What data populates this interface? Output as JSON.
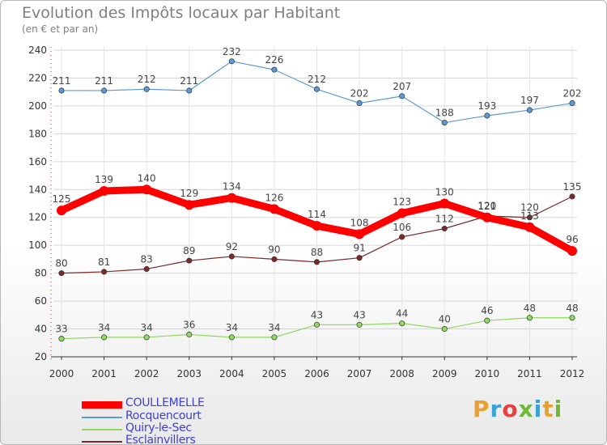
{
  "title": "Evolution des Impôts locaux par Habitant",
  "subtitle": "(en € et par an)",
  "logo_text": "Proxiti",
  "logo_colors": [
    "#e8a030",
    "#3aa0d8",
    "#e84040",
    "#70b83a",
    "#3aa0d8",
    "#e8a030",
    "#70b83a"
  ],
  "chart_data": {
    "type": "line",
    "title": "Evolution des Impôts locaux par Habitant",
    "subtitle": "(en € et par an)",
    "x": [
      "2000",
      "2001",
      "2002",
      "2003",
      "2004",
      "2005",
      "2006",
      "2007",
      "2008",
      "2009",
      "2010",
      "2011",
      "2012"
    ],
    "ylim": [
      20,
      240
    ],
    "yticks": [
      20,
      40,
      60,
      80,
      100,
      120,
      140,
      160,
      180,
      200,
      220,
      240
    ],
    "grid": true,
    "legend_position": "bottom-left",
    "series": [
      {
        "name": "Rocquencourt",
        "color": "#5b9bd5",
        "values": [
          211,
          211,
          212,
          211,
          232,
          226,
          212,
          202,
          207,
          188,
          193,
          197,
          202
        ]
      },
      {
        "name": "Quiry-le-Sec",
        "color": "#90d860",
        "values": [
          33,
          34,
          34,
          36,
          34,
          34,
          43,
          43,
          44,
          40,
          46,
          48,
          48
        ]
      },
      {
        "name": "Esclainvillers",
        "color": "#7a2a2a",
        "values": [
          80,
          81,
          83,
          89,
          92,
          90,
          88,
          91,
          106,
          112,
          121,
          120,
          135
        ]
      },
      {
        "name": "COULLEMELLE",
        "color": "#ff0000",
        "values": [
          125,
          139,
          140,
          129,
          134,
          126,
          114,
          108,
          123,
          130,
          120,
          113,
          96
        ]
      }
    ],
    "legend_order": [
      "COULLEMELLE",
      "Rocquencourt",
      "Quiry-le-Sec",
      "Esclainvillers"
    ]
  }
}
